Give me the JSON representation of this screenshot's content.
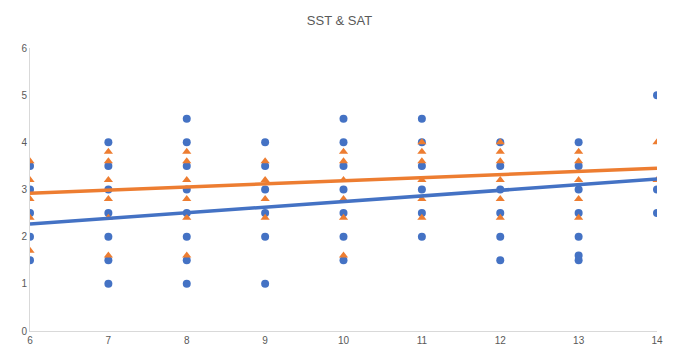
{
  "chart_data": {
    "type": "scatter",
    "title": "SST & SAT",
    "xlim": [
      6,
      14
    ],
    "xticks": [
      6,
      7,
      8,
      9,
      10,
      11,
      12,
      13,
      14
    ],
    "ylim": [
      0,
      6
    ],
    "yticks": [
      0,
      1,
      2,
      3,
      4,
      5,
      6
    ],
    "grid": false,
    "series": [
      {
        "type": "scatter",
        "color": "#4472c4",
        "marker": "circle",
        "x": [
          6,
          6,
          6,
          6,
          6,
          7,
          7,
          7,
          7,
          7,
          7,
          7,
          8,
          8,
          8,
          8,
          8,
          8,
          8,
          8,
          9,
          9,
          9,
          9,
          9,
          9,
          10,
          10,
          10,
          10,
          10,
          10,
          10,
          11,
          11,
          11,
          11,
          11,
          11,
          12,
          12,
          12,
          12,
          12,
          12,
          13,
          13,
          13,
          13,
          13,
          13,
          13,
          14,
          14,
          14
        ],
        "values": [
          1.5,
          2,
          2.5,
          3,
          3.5,
          1,
          1.5,
          2,
          2.5,
          3,
          3.5,
          4,
          1,
          1.5,
          2,
          2.5,
          3,
          3.5,
          4,
          4.5,
          1,
          2,
          2.5,
          3,
          3.5,
          4,
          1.5,
          2,
          2.5,
          3,
          3.5,
          4,
          4.5,
          2,
          2.5,
          3,
          3.5,
          4,
          4.5,
          1.5,
          2,
          2.5,
          3,
          3.5,
          4,
          1.5,
          1.6,
          2,
          2.5,
          3,
          3.5,
          4,
          2.5,
          3,
          5
        ]
      },
      {
        "type": "scatter",
        "color": "#ed7d31",
        "marker": "triangle-up",
        "x": [
          6,
          6,
          6,
          6,
          6,
          7,
          7,
          7,
          7,
          7,
          7,
          8,
          8,
          8,
          8,
          8,
          8,
          9,
          9,
          9,
          9,
          10,
          10,
          10,
          10,
          10,
          10,
          11,
          11,
          11,
          11,
          11,
          11,
          12,
          12,
          12,
          12,
          12,
          12,
          13,
          13,
          13,
          13,
          13,
          14,
          14
        ],
        "values": [
          1.7,
          2.4,
          2.8,
          3.2,
          3.6,
          1.6,
          2.4,
          2.8,
          3.2,
          3.6,
          3.8,
          1.6,
          2.4,
          2.8,
          3.2,
          3.6,
          3.8,
          2.4,
          2.8,
          3.2,
          3.6,
          1.6,
          2.4,
          2.8,
          3.2,
          3.6,
          3.8,
          2.4,
          2.8,
          3.2,
          3.6,
          3.8,
          4,
          2.4,
          2.8,
          3.2,
          3.6,
          3.8,
          4,
          2.4,
          2.8,
          3.2,
          3.6,
          3.8,
          3.2,
          4
        ]
      },
      {
        "type": "line",
        "color": "#4472c4",
        "line_style": "solid",
        "x": [
          6,
          14
        ],
        "values": [
          2.27,
          3.22
        ]
      },
      {
        "type": "line",
        "color": "#ed7d31",
        "line_style": "solid",
        "x": [
          6,
          14
        ],
        "values": [
          2.92,
          3.45
        ]
      }
    ]
  }
}
